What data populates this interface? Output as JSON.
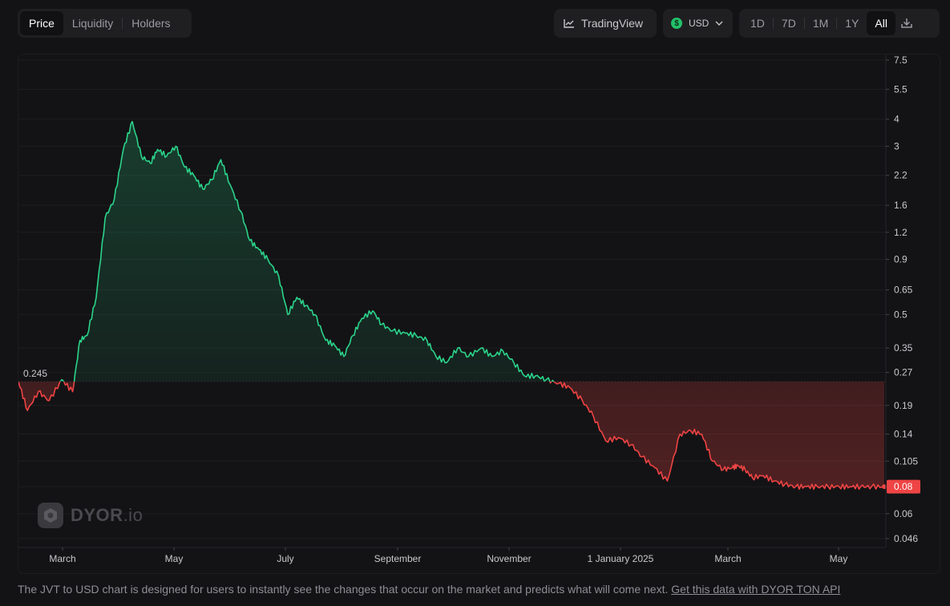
{
  "tabs": [
    {
      "label": "Price",
      "active": true
    },
    {
      "label": "Liquidity",
      "active": false
    },
    {
      "label": "Holders",
      "active": false
    }
  ],
  "toolbar": {
    "tradingview_label": "TradingView",
    "currency_label": "USD",
    "currency_icon": "$",
    "ranges": [
      {
        "label": "1D",
        "active": false
      },
      {
        "label": "7D",
        "active": false
      },
      {
        "label": "1M",
        "active": false
      },
      {
        "label": "1Y",
        "active": false
      },
      {
        "label": "All",
        "active": true
      }
    ]
  },
  "chart_data": {
    "type": "line",
    "scale": "log",
    "x_labels": [
      "March",
      "May",
      "July",
      "September",
      "November",
      "1 January 2025",
      "March",
      "May"
    ],
    "y_ticks": [
      "7.5",
      "5.5",
      "4",
      "3",
      "2.2",
      "1.6",
      "1.2",
      "0.9",
      "0.65",
      "0.5",
      "0.35",
      "0.27",
      "0.19",
      "0.14",
      "0.105",
      "0.08",
      "0.06",
      "0.046"
    ],
    "baseline_value": "0.245",
    "last_value": "0.08",
    "up_color": "#2bd48b",
    "down_color": "#ef4444",
    "x": [
      "2024-02-01",
      "2024-02-06",
      "2024-02-12",
      "2024-02-18",
      "2024-02-25",
      "2024-03-02",
      "2024-03-06",
      "2024-03-10",
      "2024-03-15",
      "2024-03-20",
      "2024-03-25",
      "2024-03-30",
      "2024-04-04",
      "2024-04-09",
      "2024-04-14",
      "2024-04-18",
      "2024-04-23",
      "2024-04-28",
      "2024-05-03",
      "2024-05-08",
      "2024-05-13",
      "2024-05-18",
      "2024-05-23",
      "2024-05-28",
      "2024-06-03",
      "2024-06-08",
      "2024-06-13",
      "2024-06-18",
      "2024-06-24",
      "2024-06-29",
      "2024-07-04",
      "2024-07-09",
      "2024-07-14",
      "2024-07-20",
      "2024-07-25",
      "2024-07-30",
      "2024-08-04",
      "2024-08-09",
      "2024-08-15",
      "2024-08-20",
      "2024-08-26",
      "2024-09-02",
      "2024-09-08",
      "2024-09-14",
      "2024-09-19",
      "2024-09-25",
      "2024-10-01",
      "2024-10-07",
      "2024-10-14",
      "2024-10-20",
      "2024-10-26",
      "2024-11-01",
      "2024-11-07",
      "2024-11-13",
      "2024-11-19",
      "2024-11-26",
      "2024-12-02",
      "2024-12-09",
      "2024-12-15",
      "2024-12-22",
      "2024-12-29",
      "2025-01-05",
      "2025-01-11",
      "2025-01-18",
      "2025-01-25",
      "2025-02-01",
      "2025-02-07",
      "2025-02-13",
      "2025-02-19",
      "2025-02-25",
      "2025-03-02",
      "2025-03-05",
      "2025-03-09",
      "2025-03-13",
      "2025-03-19",
      "2025-03-25",
      "2025-03-31",
      "2025-04-06",
      "2025-04-12",
      "2025-04-18",
      "2025-04-24",
      "2025-04-30",
      "2025-05-06",
      "2025-05-12",
      "2025-05-18",
      "2025-05-25"
    ],
    "values": [
      0.245,
      0.18,
      0.22,
      0.2,
      0.25,
      0.22,
      0.38,
      0.4,
      0.6,
      1.4,
      1.7,
      2.9,
      3.9,
      2.7,
      2.5,
      2.9,
      2.7,
      3.0,
      2.4,
      2.2,
      1.9,
      2.1,
      2.6,
      2.0,
      1.5,
      1.1,
      1.0,
      0.9,
      0.75,
      0.5,
      0.6,
      0.55,
      0.5,
      0.38,
      0.36,
      0.32,
      0.4,
      0.48,
      0.52,
      0.45,
      0.42,
      0.41,
      0.4,
      0.38,
      0.32,
      0.3,
      0.35,
      0.32,
      0.35,
      0.32,
      0.34,
      0.3,
      0.26,
      0.26,
      0.25,
      0.24,
      0.23,
      0.2,
      0.17,
      0.13,
      0.135,
      0.125,
      0.11,
      0.098,
      0.085,
      0.14,
      0.145,
      0.14,
      0.105,
      0.096,
      0.098,
      0.1,
      0.096,
      0.088,
      0.09,
      0.085,
      0.082,
      0.08,
      0.08,
      0.08,
      0.08,
      0.08,
      0.08,
      0.08,
      0.08,
      0.08
    ]
  },
  "watermark": {
    "brand": "DYOR",
    "suffix": ".io"
  },
  "footer": {
    "text": "The JVT to USD chart is designed for users to instantly see the changes that occur on the market and predicts what will come next.",
    "link": "Get this data with DYOR TON API"
  }
}
